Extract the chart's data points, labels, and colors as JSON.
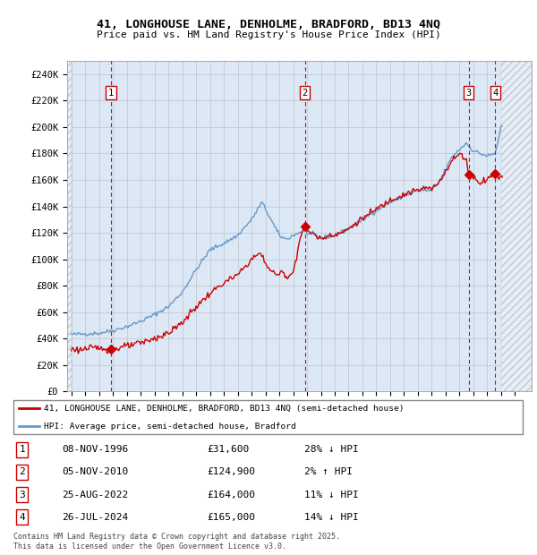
{
  "title_line1": "41, LONGHOUSE LANE, DENHOLME, BRADFORD, BD13 4NQ",
  "title_line2": "Price paid vs. HM Land Registry's House Price Index (HPI)",
  "ylim": [
    0,
    250000
  ],
  "yticks": [
    0,
    20000,
    40000,
    60000,
    80000,
    100000,
    120000,
    140000,
    160000,
    180000,
    200000,
    220000,
    240000
  ],
  "ytick_labels": [
    "£0",
    "£20K",
    "£40K",
    "£60K",
    "£80K",
    "£100K",
    "£120K",
    "£140K",
    "£160K",
    "£180K",
    "£200K",
    "£220K",
    "£240K"
  ],
  "xlim_start": 1993.7,
  "xlim_end": 2027.2,
  "data_start": 1994.0,
  "data_end": 2025.0,
  "grid_color": "#bbbbbb",
  "plot_bg": "#dce8f5",
  "hatch_bg": "#e8eef5",
  "red_dashed_color": "#dd0000",
  "purchases": [
    {
      "num": 1,
      "date_str": "08-NOV-1996",
      "year": 1996.86,
      "price": 31600,
      "hpi_pct": "28% ↓ HPI"
    },
    {
      "num": 2,
      "date_str": "05-NOV-2010",
      "year": 2010.84,
      "price": 124900,
      "hpi_pct": "2% ↑ HPI"
    },
    {
      "num": 3,
      "date_str": "25-AUG-2022",
      "year": 2022.65,
      "price": 164000,
      "hpi_pct": "11% ↓ HPI"
    },
    {
      "num": 4,
      "date_str": "26-JUL-2024",
      "year": 2024.57,
      "price": 165000,
      "hpi_pct": "14% ↓ HPI"
    }
  ],
  "legend_red_label": "41, LONGHOUSE LANE, DENHOLME, BRADFORD, BD13 4NQ (semi-detached house)",
  "legend_blue_label": "HPI: Average price, semi-detached house, Bradford",
  "footer_text": "Contains HM Land Registry data © Crown copyright and database right 2025.\nThis data is licensed under the Open Government Licence v3.0.",
  "red_line_color": "#cc0000",
  "blue_line_color": "#6699cc"
}
